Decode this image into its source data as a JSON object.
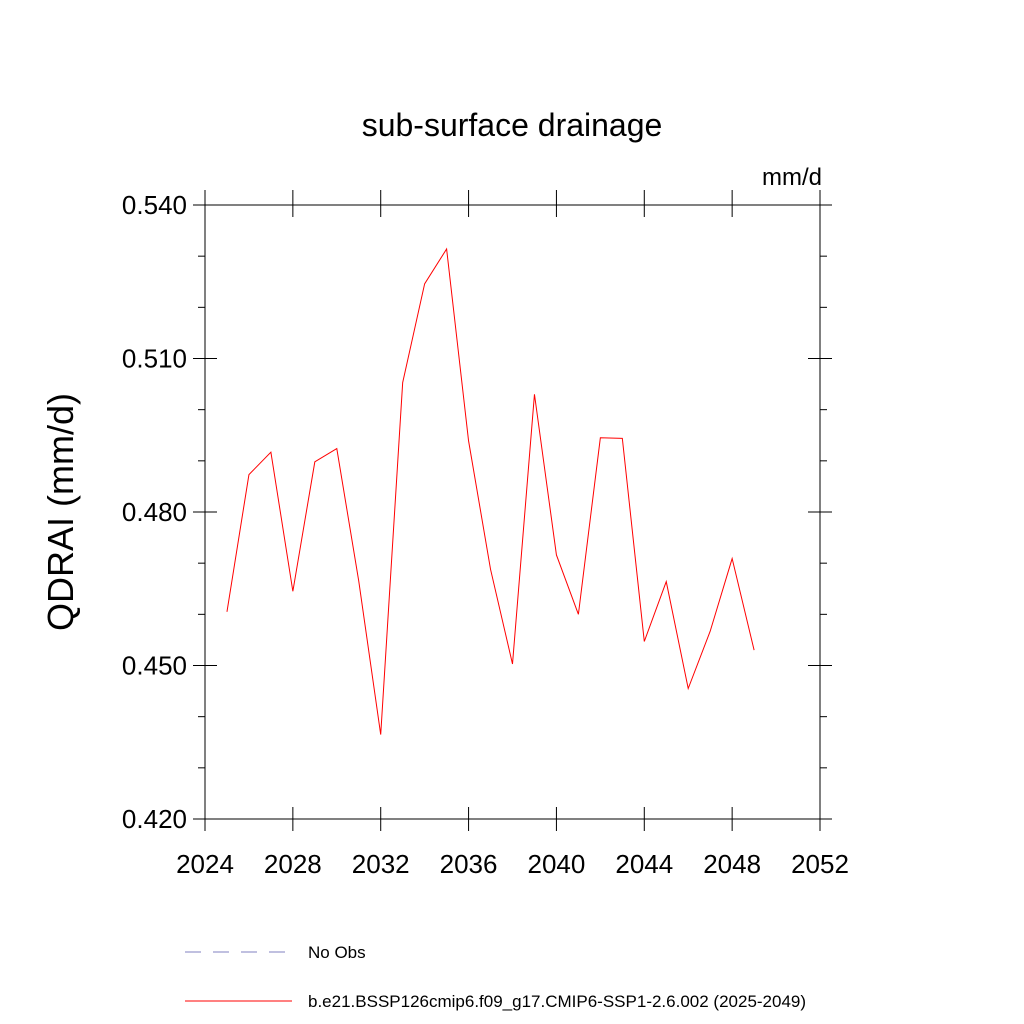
{
  "chart_data": {
    "type": "line",
    "title": "sub-surface drainage",
    "units_label": "mm/d",
    "ylabel": "QDRAI  (mm/d)",
    "xlabel": "",
    "xlim": [
      2024,
      2052
    ],
    "ylim": [
      0.42,
      0.54
    ],
    "x_ticks": [
      2024,
      2028,
      2032,
      2036,
      2040,
      2044,
      2048,
      2052
    ],
    "x_tick_labels": [
      "2024",
      "2028",
      "2032",
      "2036",
      "2040",
      "2044",
      "2048",
      "2052"
    ],
    "x_minor_step": 1,
    "y_ticks": [
      0.42,
      0.45,
      0.48,
      0.51,
      0.54
    ],
    "y_tick_labels": [
      "0.420",
      "0.450",
      "0.480",
      "0.510",
      "0.540"
    ],
    "y_minor_step": 0.01,
    "series": [
      {
        "name": "b.e21.BSSP126cmip6.f09_g17.CMIP6-SSP1-2.6.002 (2025-2049)",
        "color": "#ff0000",
        "x": [
          2025,
          2026,
          2027,
          2028,
          2029,
          2030,
          2031,
          2032,
          2033,
          2034,
          2035,
          2036,
          2037,
          2038,
          2039,
          2040,
          2041,
          2042,
          2043,
          2044,
          2045,
          2046,
          2047,
          2048,
          2049
        ],
        "values": [
          0.4605,
          0.4873,
          0.4917,
          0.4645,
          0.4898,
          0.4924,
          0.4665,
          0.4365,
          0.5053,
          0.5246,
          0.5314,
          0.4939,
          0.4688,
          0.4503,
          0.503,
          0.4716,
          0.46,
          0.4945,
          0.4944,
          0.4547,
          0.4664,
          0.4455,
          0.4567,
          0.4709,
          0.453
        ]
      }
    ],
    "legend": [
      {
        "label": "No Obs",
        "style": "dashed",
        "color": "#8080c0"
      },
      {
        "label": "b.e21.BSSP126cmip6.f09_g17.CMIP6-SSP1-2.6.002 (2025-2049)",
        "style": "solid",
        "color": "#ff0000"
      }
    ]
  }
}
